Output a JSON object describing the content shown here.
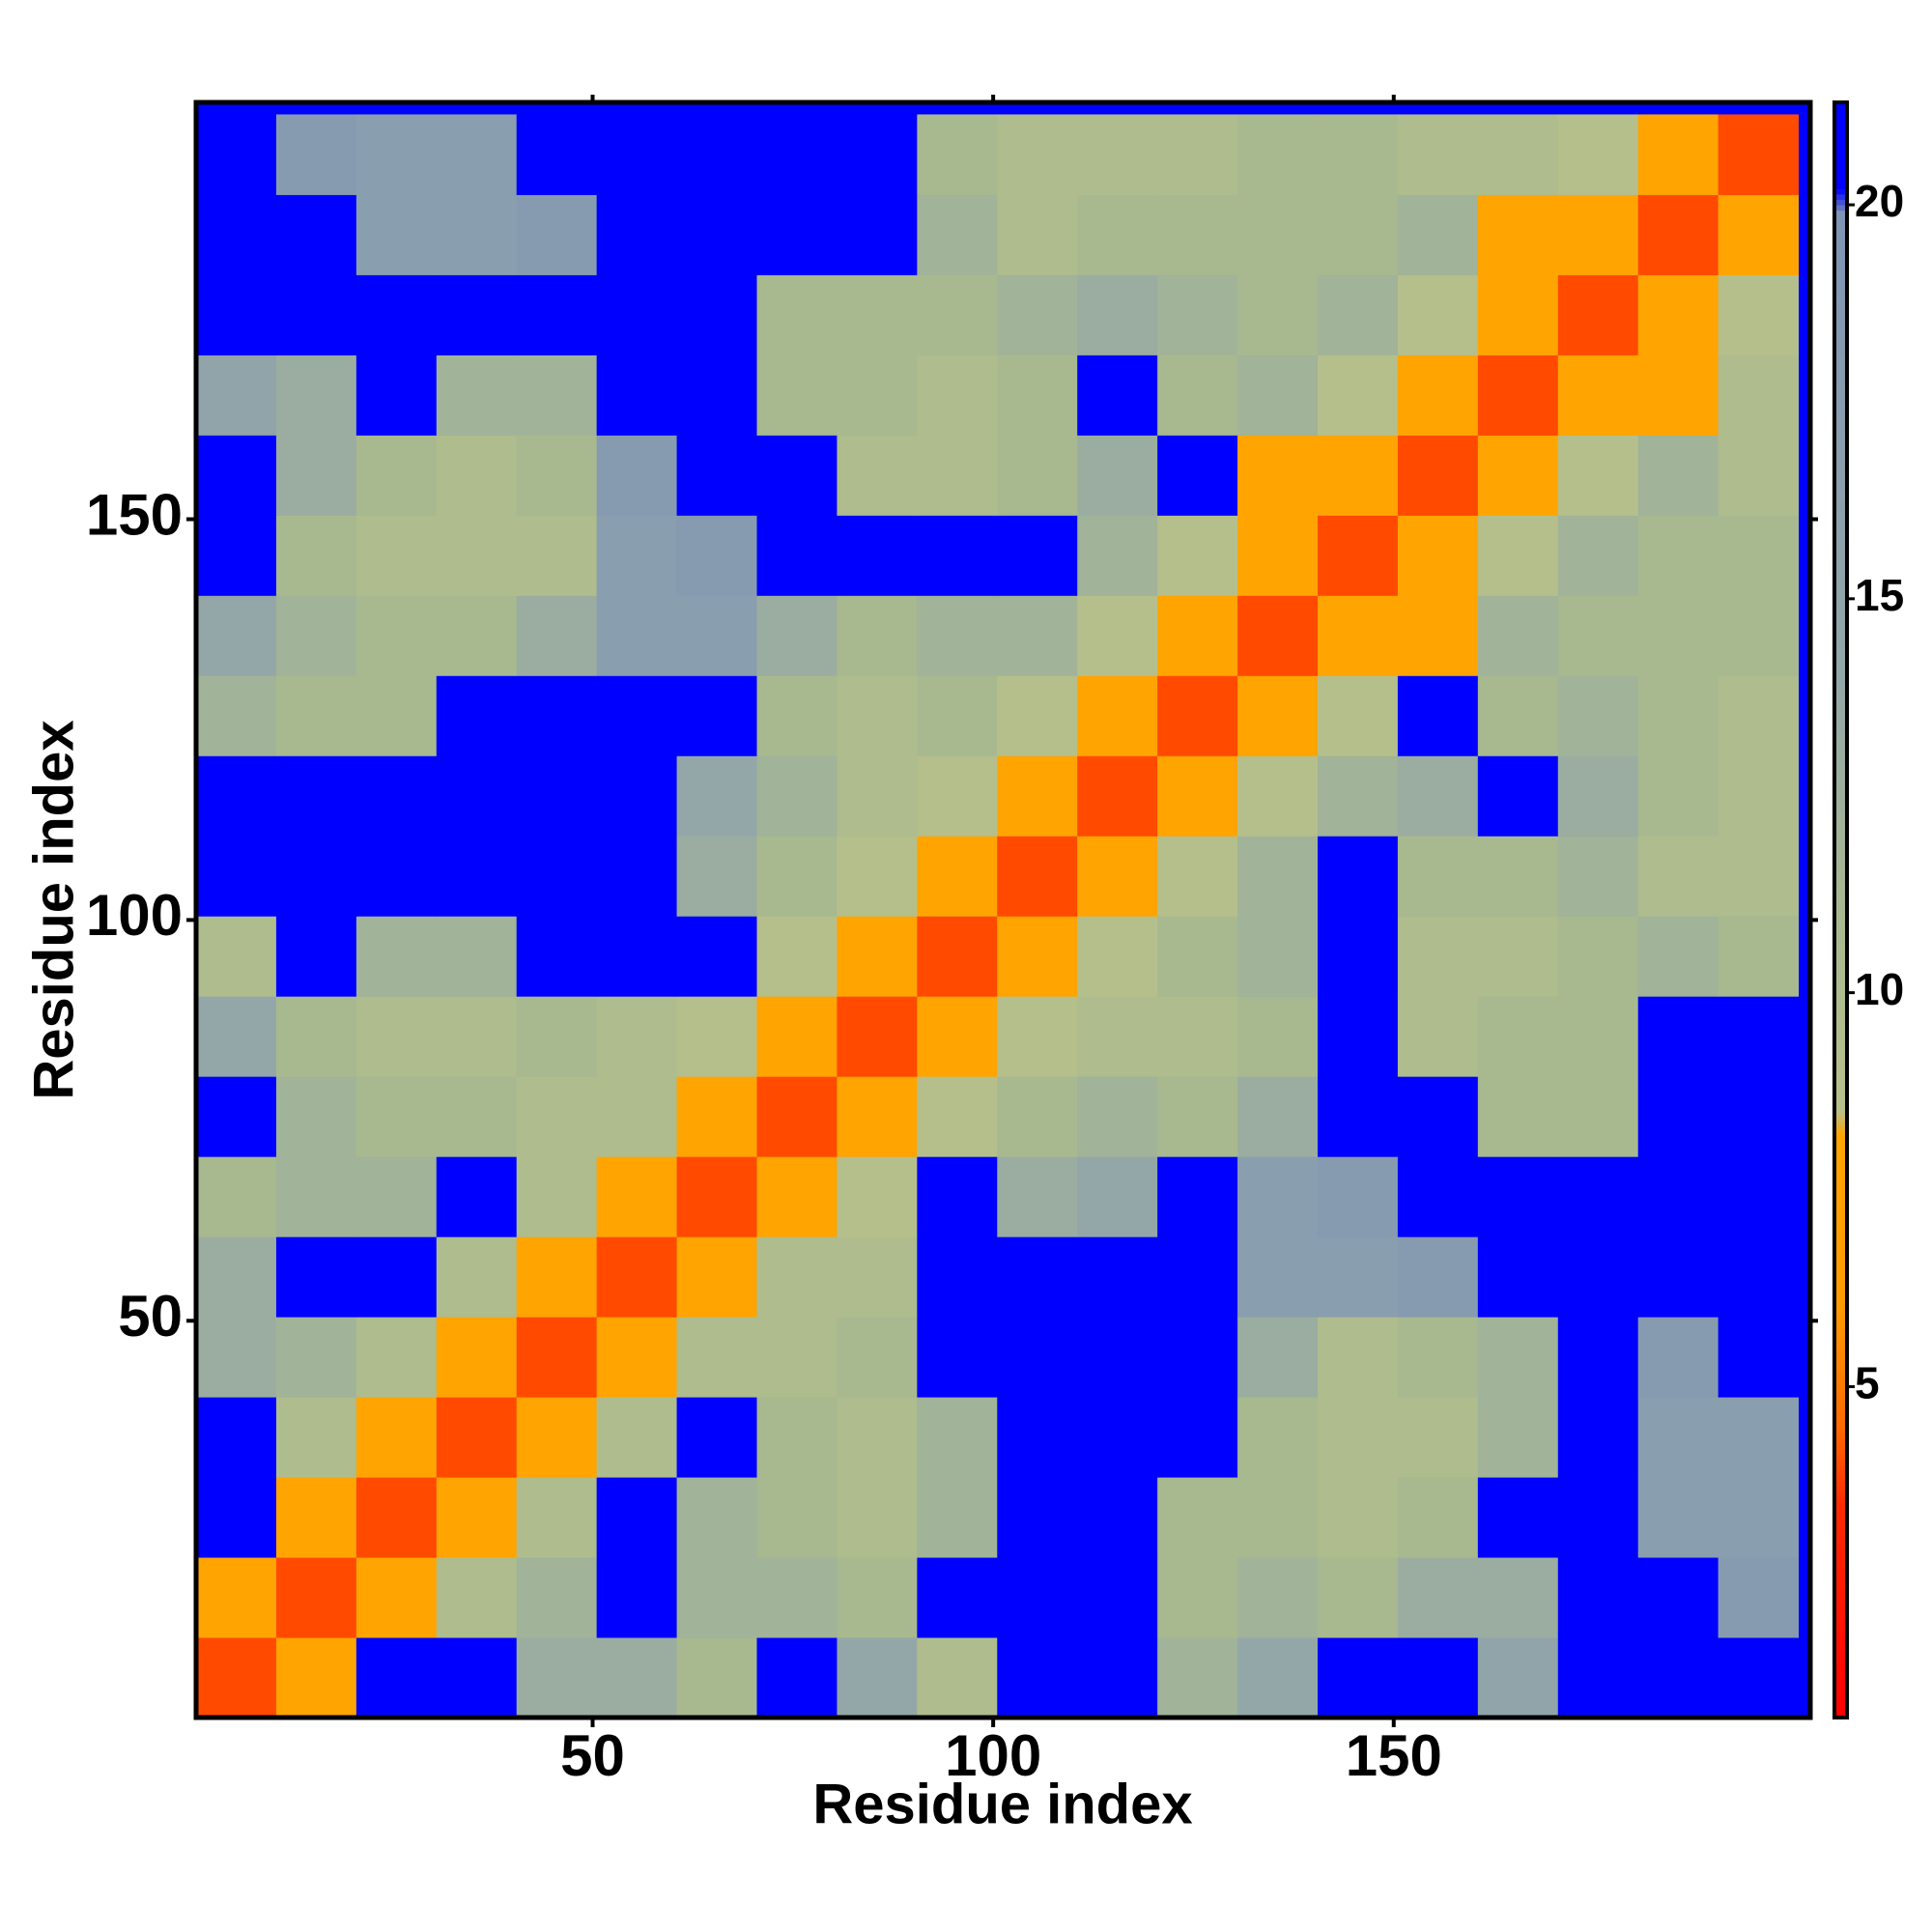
{
  "chart_data": {
    "type": "heatmap",
    "xlabel": "Residue index",
    "ylabel": "Residue index",
    "x": [
      5.5,
      15.5,
      25.5,
      35.5,
      45.5,
      55.5,
      65.5,
      75.5,
      85.5,
      95.5,
      105.5,
      115.5,
      125.5,
      135.5,
      145.5,
      155.5,
      165.5,
      175.5,
      185.5,
      195.5
    ],
    "y": [
      5.5,
      15.5,
      25.5,
      35.5,
      45.5,
      55.5,
      65.5,
      75.5,
      85.5,
      95.5,
      105.5,
      115.5,
      125.5,
      135.5,
      145.5,
      155.5,
      165.5,
      175.5,
      185.5,
      195.5
    ],
    "values": [
      [
        4,
        8,
        21,
        21,
        13,
        13,
        11,
        21,
        14,
        10,
        21,
        21,
        12,
        14,
        21,
        21,
        15,
        21,
        21,
        21
      ],
      [
        8,
        4,
        8,
        10,
        12,
        21,
        12,
        12,
        11,
        21,
        21,
        21,
        11,
        12,
        11,
        13,
        13,
        21,
        21,
        18
      ],
      [
        21,
        8,
        4,
        8,
        10,
        21,
        12,
        11,
        10,
        12,
        21,
        21,
        11,
        11,
        10,
        11,
        21,
        21,
        17,
        17
      ],
      [
        21,
        10,
        8,
        4,
        8,
        10,
        21,
        11,
        10,
        12,
        21,
        21,
        21,
        11,
        10,
        10,
        12,
        21,
        17,
        17
      ],
      [
        13,
        12,
        10,
        8,
        4,
        8,
        10,
        10,
        11,
        21,
        21,
        21,
        21,
        13,
        10,
        11,
        12,
        21,
        18,
        21
      ],
      [
        13,
        21,
        21,
        10,
        8,
        4,
        8,
        10,
        10,
        21,
        21,
        21,
        21,
        17,
        17,
        18,
        21,
        21,
        21,
        21
      ],
      [
        11,
        12,
        12,
        21,
        10,
        8,
        4,
        8,
        9,
        21,
        13,
        14,
        21,
        17,
        18,
        21,
        21,
        21,
        21,
        21
      ],
      [
        21,
        12,
        11,
        11,
        10,
        10,
        8,
        4,
        8,
        9,
        11,
        12,
        11,
        13,
        21,
        21,
        11,
        11,
        21,
        21
      ],
      [
        14,
        11,
        10,
        10,
        11,
        10,
        9,
        8,
        4,
        8,
        9,
        10,
        10,
        11,
        21,
        10,
        11,
        11,
        21,
        21
      ],
      [
        10,
        21,
        12,
        12,
        21,
        21,
        21,
        9,
        8,
        4,
        8,
        9,
        11,
        12,
        21,
        10,
        10,
        11,
        12,
        11
      ],
      [
        21,
        21,
        21,
        21,
        21,
        21,
        13,
        11,
        9,
        8,
        4,
        8,
        9,
        12,
        21,
        11,
        11,
        12,
        10,
        10
      ],
      [
        21,
        21,
        21,
        21,
        21,
        21,
        14,
        12,
        10,
        9,
        8,
        4,
        8,
        9,
        12,
        13,
        21,
        13,
        11,
        10
      ],
      [
        12,
        11,
        11,
        21,
        21,
        21,
        21,
        11,
        10,
        11,
        9,
        8,
        4,
        8,
        9,
        21,
        11,
        12,
        11,
        10
      ],
      [
        14,
        12,
        11,
        11,
        13,
        17,
        17,
        13,
        11,
        12,
        12,
        9,
        8,
        4,
        8,
        8,
        12,
        11,
        11,
        11
      ],
      [
        21,
        11,
        10,
        10,
        10,
        17,
        18,
        21,
        21,
        21,
        21,
        12,
        9,
        8,
        4,
        8,
        9,
        12,
        11,
        11
      ],
      [
        21,
        13,
        11,
        10,
        11,
        18,
        21,
        21,
        10,
        10,
        11,
        13,
        21,
        8,
        8,
        4,
        8,
        9,
        12,
        10
      ],
      [
        15,
        13,
        21,
        12,
        12,
        21,
        21,
        11,
        11,
        10,
        11,
        21,
        11,
        12,
        9,
        8,
        4,
        8,
        8,
        10
      ],
      [
        21,
        21,
        21,
        21,
        21,
        21,
        21,
        11,
        11,
        11,
        12,
        13,
        12,
        11,
        12,
        9,
        8,
        4,
        8,
        9
      ],
      [
        21,
        21,
        17,
        17,
        18,
        21,
        21,
        21,
        21,
        12,
        10,
        11,
        11,
        11,
        11,
        12,
        8,
        8,
        4,
        8
      ],
      [
        21,
        18,
        17,
        17,
        21,
        21,
        21,
        21,
        21,
        11,
        10,
        10,
        10,
        11,
        11,
        10,
        10,
        9,
        8,
        4
      ]
    ],
    "xlim": [
      0.5,
      202
    ],
    "ylim": [
      0.5,
      202
    ],
    "xticks": [
      50,
      100,
      150
    ],
    "yticks": [
      50,
      100,
      150
    ],
    "colorbar": {
      "lim": [
        0.8,
        21.3
      ],
      "ticks": [
        5,
        10,
        15,
        20
      ]
    },
    "colorscale": [
      [
        0.8,
        "#ff0000"
      ],
      [
        3.5,
        "#ff2a00"
      ],
      [
        4.5,
        "#ff6a00"
      ],
      [
        6,
        "#ff9a00"
      ],
      [
        8.2,
        "#ffa500"
      ],
      [
        8.5,
        "#b8c08a"
      ],
      [
        11,
        "#a8b990"
      ],
      [
        14,
        "#94a7a8"
      ],
      [
        19.9,
        "#7f95b4"
      ],
      [
        20.2,
        "#0000ff"
      ],
      [
        21.3,
        "#0000ff"
      ]
    ]
  }
}
